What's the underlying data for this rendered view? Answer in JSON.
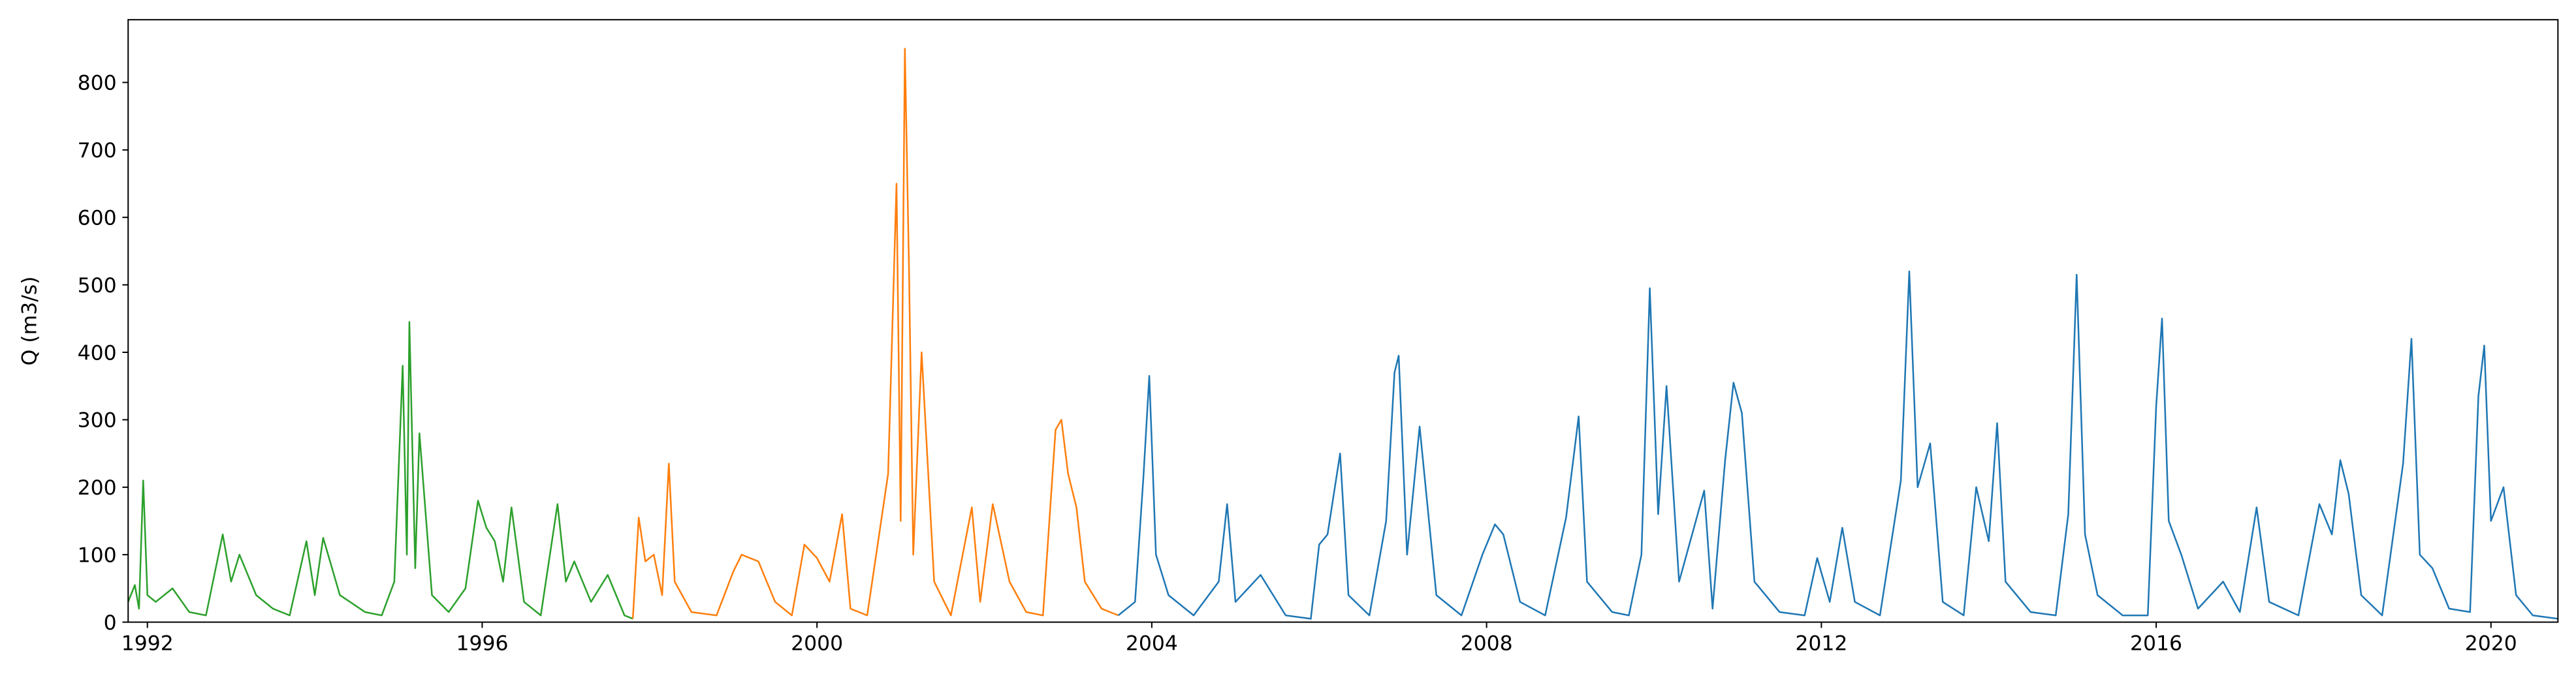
{
  "chart_data": {
    "type": "line",
    "ylabel": "Q (m3/s)",
    "xlim": [
      1991.77,
      2020.8
    ],
    "ylim": [
      0,
      893
    ],
    "xticks": [
      1992,
      1996,
      2000,
      2004,
      2008,
      2012,
      2016,
      2020
    ],
    "yticks": [
      0,
      100,
      200,
      300,
      400,
      500,
      600,
      700,
      800
    ],
    "grid": false,
    "series": [
      {
        "color": "#2ca02c",
        "x": [
          1991.77,
          1991.85,
          1991.9,
          1991.95,
          1992.0,
          1992.1,
          1992.3,
          1992.5,
          1992.7,
          1992.9,
          1993.0,
          1993.1,
          1993.3,
          1993.5,
          1993.7,
          1993.9,
          1994.0,
          1994.1,
          1994.3,
          1994.6,
          1994.8,
          1994.95,
          1995.05,
          1995.1,
          1995.13,
          1995.2,
          1995.25,
          1995.4,
          1995.6,
          1995.8,
          1995.95,
          1996.05,
          1996.15,
          1996.25,
          1996.35,
          1996.5,
          1996.7,
          1996.9,
          1997.0,
          1997.1,
          1997.3,
          1997.5,
          1997.7,
          1997.8
        ],
        "values": [
          30,
          55,
          20,
          210,
          40,
          30,
          50,
          15,
          10,
          130,
          60,
          100,
          40,
          20,
          10,
          120,
          40,
          125,
          40,
          15,
          10,
          60,
          380,
          100,
          445,
          80,
          280,
          40,
          15,
          50,
          180,
          140,
          120,
          60,
          170,
          30,
          10,
          175,
          60,
          90,
          30,
          70,
          10,
          5
        ]
      },
      {
        "color": "#ff7f0e",
        "x": [
          1997.8,
          1997.87,
          1997.95,
          1998.05,
          1998.15,
          1998.23,
          1998.3,
          1998.5,
          1998.8,
          1999.0,
          1999.1,
          1999.3,
          1999.5,
          1999.7,
          1999.85,
          2000.0,
          2000.15,
          2000.3,
          2000.4,
          2000.6,
          2000.85,
          2000.95,
          2001.0,
          2001.05,
          2001.1,
          2001.15,
          2001.25,
          2001.4,
          2001.6,
          2001.85,
          2001.95,
          2002.1,
          2002.3,
          2002.5,
          2002.7,
          2002.85,
          2002.92,
          2003.0,
          2003.1,
          2003.2,
          2003.4,
          2003.6
        ],
        "values": [
          5,
          155,
          90,
          100,
          40,
          235,
          60,
          15,
          10,
          75,
          100,
          90,
          30,
          10,
          115,
          95,
          60,
          160,
          20,
          10,
          220,
          650,
          150,
          850,
          520,
          100,
          400,
          60,
          10,
          170,
          30,
          175,
          60,
          15,
          10,
          285,
          300,
          220,
          170,
          60,
          20,
          10
        ]
      },
      {
        "color": "#1f77b4",
        "x": [
          2003.6,
          2003.8,
          2003.9,
          2003.97,
          2004.05,
          2004.2,
          2004.5,
          2004.8,
          2004.9,
          2005.0,
          2005.3,
          2005.6,
          2005.9,
          2006.0,
          2006.1,
          2006.25,
          2006.35,
          2006.6,
          2006.8,
          2006.9,
          2006.95,
          2007.05,
          2007.2,
          2007.4,
          2007.7,
          2007.95,
          2008.1,
          2008.2,
          2008.4,
          2008.7,
          2008.95,
          2009.1,
          2009.2,
          2009.5,
          2009.7,
          2009.85,
          2009.95,
          2010.05,
          2010.15,
          2010.3,
          2010.6,
          2010.7,
          2010.85,
          2010.95,
          2011.05,
          2011.2,
          2011.5,
          2011.8,
          2011.95,
          2012.1,
          2012.25,
          2012.4,
          2012.7,
          2012.95,
          2013.05,
          2013.15,
          2013.3,
          2013.45,
          2013.7,
          2013.85,
          2014.0,
          2014.1,
          2014.2,
          2014.5,
          2014.8,
          2014.95,
          2015.05,
          2015.15,
          2015.3,
          2015.6,
          2015.9,
          2016.0,
          2016.07,
          2016.15,
          2016.3,
          2016.5,
          2016.8,
          2017.0,
          2017.2,
          2017.35,
          2017.7,
          2017.95,
          2018.1,
          2018.2,
          2018.3,
          2018.45,
          2018.7,
          2018.95,
          2019.05,
          2019.15,
          2019.3,
          2019.5,
          2019.75,
          2019.85,
          2019.92,
          2020.0,
          2020.15,
          2020.3,
          2020.5,
          2020.8
        ],
        "values": [
          10,
          30,
          215,
          365,
          100,
          40,
          10,
          60,
          175,
          30,
          70,
          10,
          5,
          115,
          130,
          250,
          40,
          10,
          150,
          370,
          395,
          100,
          290,
          40,
          10,
          100,
          145,
          130,
          30,
          10,
          155,
          305,
          60,
          15,
          10,
          100,
          495,
          160,
          350,
          60,
          195,
          20,
          240,
          355,
          310,
          60,
          15,
          10,
          95,
          30,
          140,
          30,
          10,
          210,
          520,
          200,
          265,
          30,
          10,
          200,
          120,
          295,
          60,
          15,
          10,
          160,
          515,
          130,
          40,
          10,
          10,
          320,
          450,
          150,
          100,
          20,
          60,
          15,
          170,
          30,
          10,
          175,
          130,
          240,
          190,
          40,
          10,
          235,
          420,
          100,
          80,
          20,
          15,
          335,
          410,
          150,
          200,
          40,
          10,
          5
        ]
      }
    ]
  }
}
